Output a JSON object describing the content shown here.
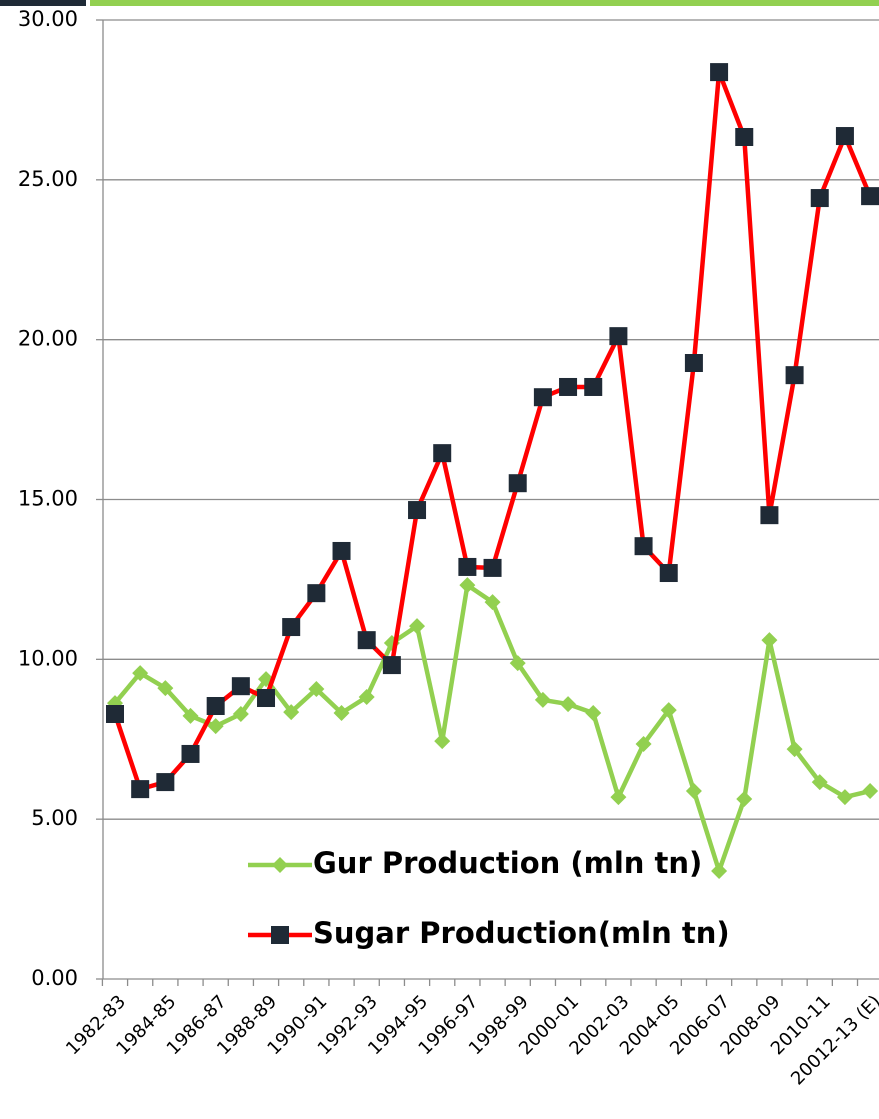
{
  "chart_data": {
    "type": "line",
    "categories": [
      "1982-83",
      null,
      "1984-85",
      null,
      "1986-87",
      null,
      "1988-89",
      null,
      "1990-91",
      null,
      "1992-93",
      null,
      "1994-95",
      null,
      "1996-97",
      null,
      "1998-99",
      null,
      "2000-01",
      null,
      "2002-03",
      null,
      "2004-05",
      null,
      "2006-07",
      null,
      "2008-09",
      null,
      "2010-11",
      null,
      "20012-13 (E)"
    ],
    "series": [
      {
        "name": "Gur Production (mln tn)",
        "color": "#92d050",
        "marker": "diamond",
        "values": [
          8.63,
          9.57,
          9.1,
          8.23,
          7.91,
          8.29,
          9.38,
          8.35,
          9.07,
          8.32,
          8.82,
          10.51,
          11.04,
          7.44,
          12.32,
          11.79,
          9.88,
          8.73,
          8.6,
          8.32,
          5.69,
          7.35,
          8.41,
          5.88,
          3.38,
          5.63,
          10.6,
          7.19,
          6.16,
          5.69,
          5.88
        ]
      },
      {
        "name": "Sugar Production(mln tn)",
        "color": "#ff0000",
        "marker": "square",
        "values": [
          8.29,
          5.94,
          6.16,
          7.04,
          8.54,
          9.16,
          8.79,
          11.01,
          12.07,
          13.39,
          10.6,
          9.82,
          14.67,
          16.45,
          12.89,
          12.86,
          15.51,
          18.2,
          18.52,
          18.52,
          20.11,
          13.54,
          12.7,
          19.27,
          28.37,
          26.34,
          14.51,
          18.89,
          24.43,
          26.37,
          24.49
        ]
      }
    ],
    "ylim": [
      0,
      30
    ],
    "yticks": [
      {
        "value": 0,
        "label": "0.00"
      },
      {
        "value": 5,
        "label": "5.00"
      },
      {
        "value": 10,
        "label": "10.00"
      },
      {
        "value": 15,
        "label": "15.00"
      },
      {
        "value": 20,
        "label": "20.00"
      },
      {
        "value": 25,
        "label": "25.00"
      },
      {
        "value": 30,
        "label": "30.00"
      }
    ],
    "grid": true
  }
}
